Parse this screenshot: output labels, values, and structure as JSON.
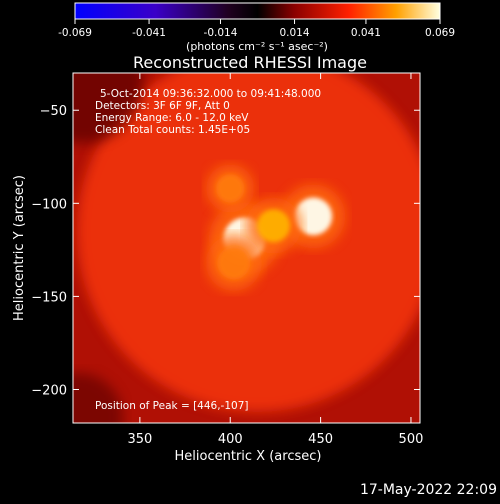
{
  "footer_timestamp": "17-May-2022 22:09",
  "colorbar": {
    "tick_labels": [
      "-0.069",
      "-0.041",
      "-0.014",
      "0.014",
      "0.041",
      "0.069"
    ],
    "range": [
      -0.069,
      0.069
    ],
    "unit_label": "(photons cm⁻² s⁻¹ asec⁻²)",
    "colormap": "RHESSI color table 3 (blue-black-red-yellow-white)"
  },
  "chart_data": {
    "type": "heatmap",
    "title": "Reconstructed RHESSI Image",
    "xlabel": "Heliocentric X (arcsec)",
    "ylabel": "Heliocentric Y (arcsec)",
    "xlim": [
      313,
      505
    ],
    "ylim": [
      -218,
      -30
    ],
    "x_ticks": [
      350,
      400,
      450,
      500
    ],
    "y_ticks": [
      -50,
      -100,
      -150,
      -200
    ],
    "info_lines": [
      "5-Oct-2014 09:36:32.000 to 09:41:48.000",
      "Detectors: 3F 6F 9F, Att 0",
      "Energy Range: 6.0 - 12.0 keV",
      "Clean     Total counts: 1.45E+05"
    ],
    "peak_label": "Position of Peak = [446,-107]",
    "sources": [
      {
        "x": 446,
        "y": -107,
        "sigma": 8,
        "flux": 0.069
      },
      {
        "x": 408,
        "y": -119,
        "sigma": 9,
        "flux": 0.066
      },
      {
        "x": 424,
        "y": -112,
        "sigma": 7,
        "flux": 0.052
      },
      {
        "x": 400,
        "y": -92,
        "sigma": 6,
        "flux": 0.042
      },
      {
        "x": 402,
        "y": -132,
        "sigma": 7,
        "flux": 0.04
      }
    ],
    "background_halo": {
      "x": 415,
      "y": -115,
      "sigma": 50,
      "flux": 0.03
    }
  }
}
